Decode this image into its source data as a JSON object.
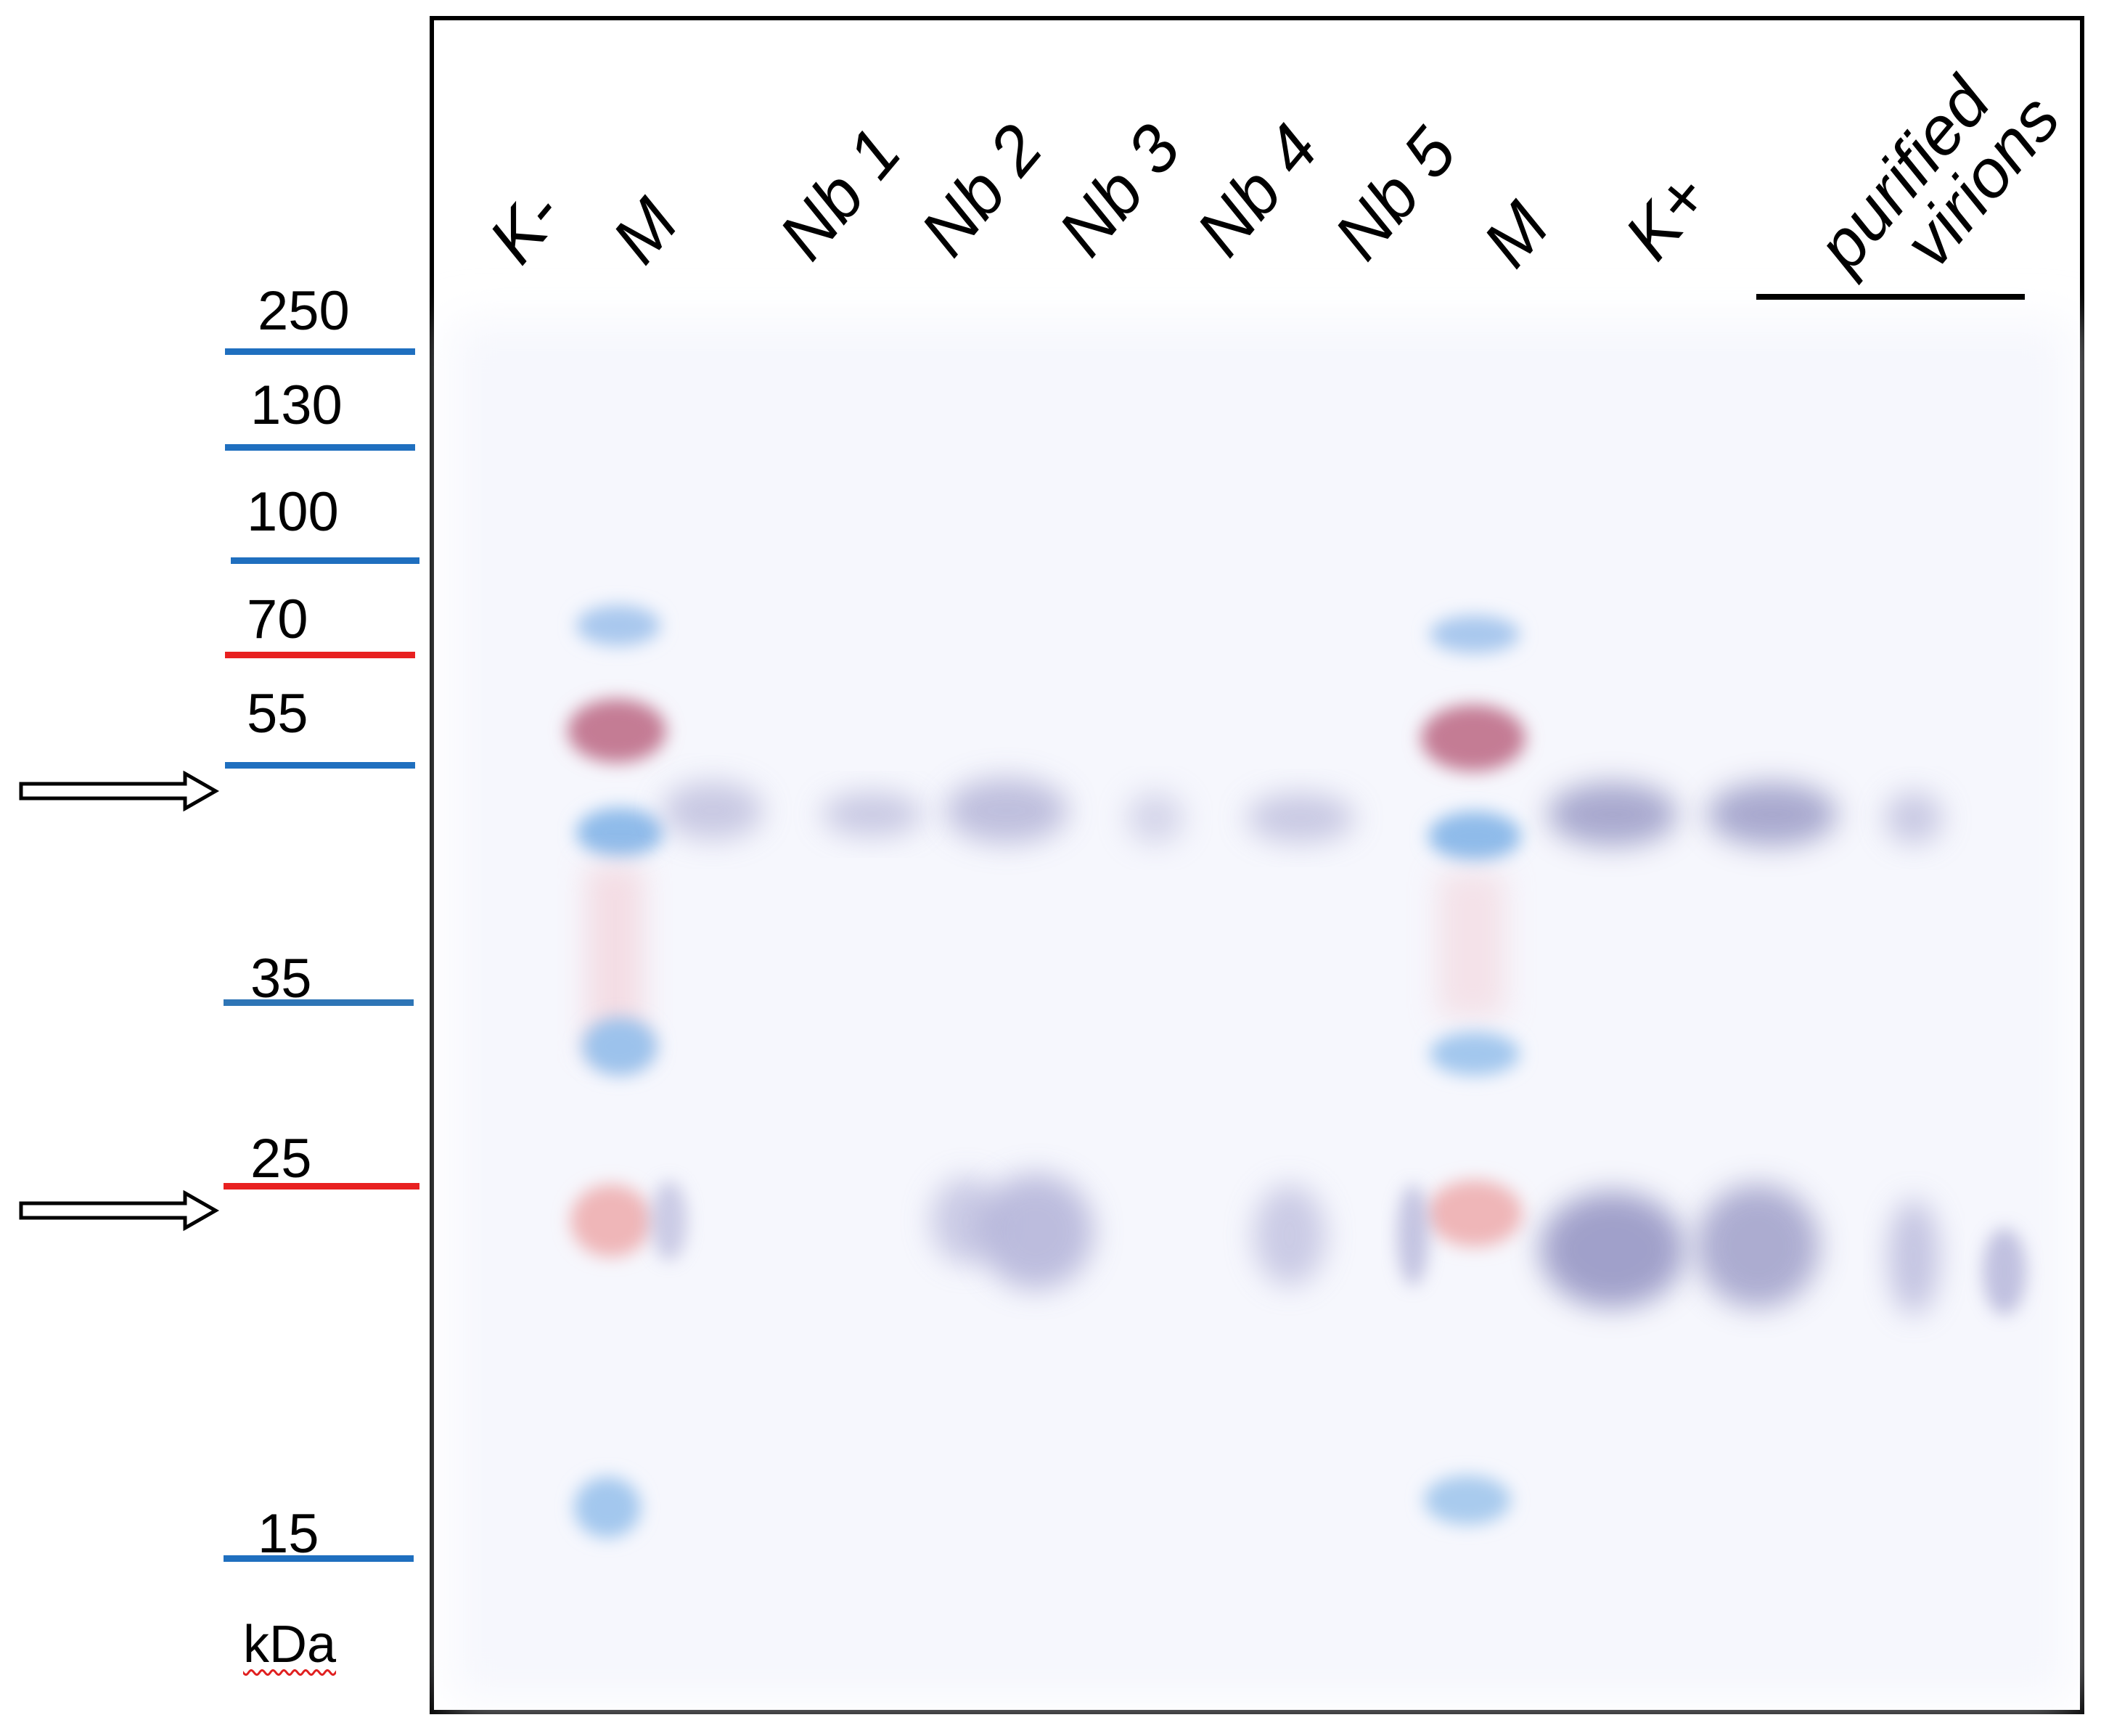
{
  "lanes": [
    {
      "label": "K-"
    },
    {
      "label": "M"
    },
    {
      "label": "Nb 1"
    },
    {
      "label": "Nb 2"
    },
    {
      "label": "Nb 3"
    },
    {
      "label": "Nb 4"
    },
    {
      "label": "Nb 5"
    },
    {
      "label": "M"
    },
    {
      "label": "K+"
    }
  ],
  "group_label": {
    "line1": "purified",
    "line2": "virions"
  },
  "markers": [
    {
      "kda": "250",
      "color": "#1f6fbf"
    },
    {
      "kda": "130",
      "color": "#1f6fbf"
    },
    {
      "kda": "100",
      "color": "#1f6fbf"
    },
    {
      "kda": "70",
      "color": "#e82020"
    },
    {
      "kda": "55",
      "color": "#1f6fbf"
    },
    {
      "kda": "35",
      "color": "#2e75b6"
    },
    {
      "kda": "25",
      "color": "#e82020"
    },
    {
      "kda": "15",
      "color": "#1f6fbf"
    }
  ],
  "unit": "kDa",
  "colors": {
    "membrane": "#f7f8fe",
    "ladder_blue": "#7fb0e6",
    "ladder_red": "#c87890",
    "band": "#9a9ac6"
  }
}
